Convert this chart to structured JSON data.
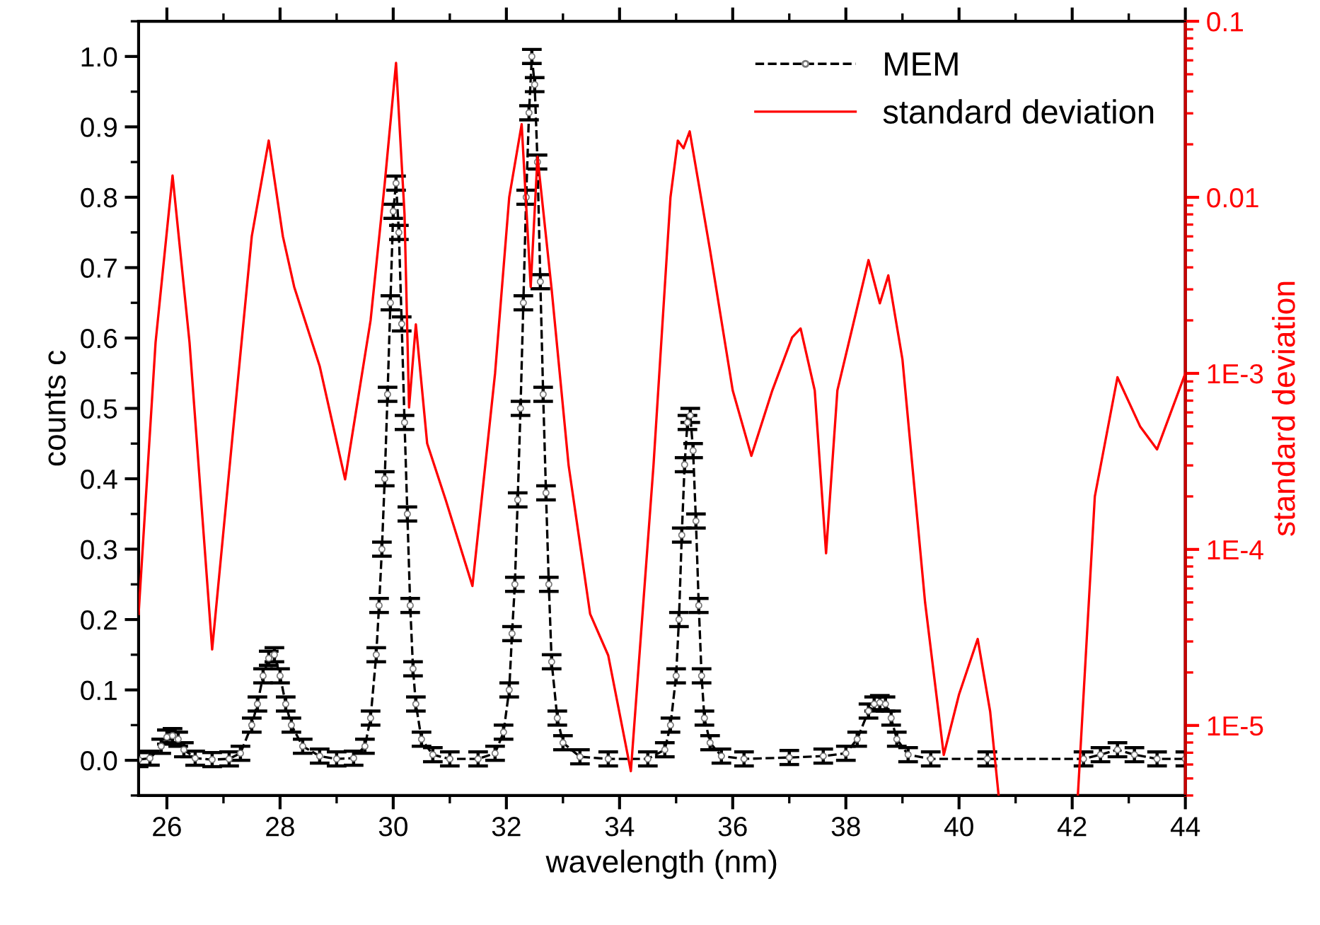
{
  "chart_data": {
    "type": "line",
    "xlabel": "wavelength (nm)",
    "ylabel": "counts c",
    "y2label": "standard deviation",
    "xlim": [
      25.5,
      44
    ],
    "xticks": [
      26,
      28,
      30,
      32,
      34,
      36,
      38,
      40,
      42,
      44
    ],
    "ylim": [
      -0.05,
      1.05
    ],
    "yticks": [
      {
        "value": 0,
        "label": "0.0"
      },
      0.1,
      0.2,
      0.3,
      0.4,
      0.5,
      0.6,
      0.7,
      0.8,
      0.9,
      {
        "value": 1,
        "label": "1.0"
      }
    ],
    "y2lim": [
      4e-06,
      0.1
    ],
    "y2ticks": [
      {
        "value": 1e-05,
        "label": "1E-5"
      },
      {
        "value": 0.0001,
        "label": "1E-4"
      },
      {
        "value": 0.001,
        "label": "1E-3"
      },
      0.01,
      0.1
    ],
    "log": "y2",
    "legend": "top right",
    "grid": false,
    "series": [
      {
        "name": "MEM",
        "color": "#000000",
        "marker": "circle",
        "line_style": "dashed",
        "x": [
          25.5,
          25.7,
          25.9,
          26.0,
          26.1,
          26.2,
          26.3,
          26.5,
          26.8,
          27.1,
          27.3,
          27.5,
          27.6,
          27.7,
          27.8,
          27.9,
          28.0,
          28.1,
          28.2,
          28.4,
          28.7,
          29.0,
          29.3,
          29.5,
          29.6,
          29.7,
          29.75,
          29.8,
          29.85,
          29.9,
          29.95,
          30.0,
          30.05,
          30.1,
          30.15,
          30.2,
          30.25,
          30.3,
          30.35,
          30.4,
          30.5,
          30.7,
          31.0,
          31.5,
          31.8,
          31.95,
          32.05,
          32.1,
          32.15,
          32.2,
          32.25,
          32.3,
          32.35,
          32.4,
          32.45,
          32.5,
          32.55,
          32.6,
          32.65,
          32.7,
          32.75,
          32.8,
          32.9,
          33.0,
          33.3,
          33.8,
          34.5,
          34.8,
          34.9,
          35.0,
          35.05,
          35.1,
          35.15,
          35.2,
          35.25,
          35.3,
          35.35,
          35.4,
          35.45,
          35.5,
          35.6,
          35.8,
          36.2,
          37.0,
          37.6,
          38.0,
          38.2,
          38.4,
          38.5,
          38.6,
          38.7,
          38.8,
          38.9,
          39.1,
          39.5,
          40.5,
          42.2,
          42.5,
          42.8,
          43.1,
          43.5,
          44.0
        ],
        "values": [
          0.001,
          0.003,
          0.02,
          0.033,
          0.035,
          0.03,
          0.015,
          0.003,
          0.001,
          0.002,
          0.01,
          0.05,
          0.08,
          0.12,
          0.145,
          0.15,
          0.12,
          0.08,
          0.05,
          0.02,
          0.006,
          0.002,
          0.003,
          0.02,
          0.06,
          0.15,
          0.22,
          0.3,
          0.4,
          0.52,
          0.65,
          0.78,
          0.82,
          0.75,
          0.62,
          0.48,
          0.35,
          0.22,
          0.13,
          0.08,
          0.03,
          0.008,
          0.002,
          0.002,
          0.01,
          0.04,
          0.1,
          0.18,
          0.25,
          0.37,
          0.5,
          0.65,
          0.8,
          0.92,
          1.0,
          0.96,
          0.85,
          0.68,
          0.52,
          0.38,
          0.25,
          0.14,
          0.06,
          0.025,
          0.005,
          0.002,
          0.002,
          0.015,
          0.05,
          0.12,
          0.2,
          0.32,
          0.42,
          0.48,
          0.49,
          0.44,
          0.34,
          0.22,
          0.12,
          0.06,
          0.025,
          0.006,
          0.002,
          0.004,
          0.006,
          0.01,
          0.03,
          0.07,
          0.08,
          0.082,
          0.08,
          0.06,
          0.03,
          0.008,
          0.002,
          0.002,
          0.002,
          0.008,
          0.015,
          0.008,
          0.002,
          0.002
        ],
        "errors": [
          0.01,
          0.01,
          0.01,
          0.01,
          0.01,
          0.01,
          0.01,
          0.01,
          0.01,
          0.01,
          0.01,
          0.01,
          0.01,
          0.01,
          0.01,
          0.01,
          0.01,
          0.01,
          0.01,
          0.01,
          0.01,
          0.01,
          0.01,
          0.01,
          0.01,
          0.01,
          0.01,
          0.01,
          0.01,
          0.01,
          0.01,
          0.01,
          0.01,
          0.01,
          0.01,
          0.01,
          0.01,
          0.01,
          0.01,
          0.01,
          0.01,
          0.01,
          0.01,
          0.01,
          0.01,
          0.01,
          0.01,
          0.01,
          0.01,
          0.01,
          0.01,
          0.01,
          0.01,
          0.01,
          0.01,
          0.01,
          0.01,
          0.01,
          0.01,
          0.01,
          0.01,
          0.01,
          0.01,
          0.01,
          0.01,
          0.01,
          0.01,
          0.01,
          0.01,
          0.01,
          0.01,
          0.01,
          0.01,
          0.01,
          0.01,
          0.01,
          0.01,
          0.01,
          0.01,
          0.01,
          0.01,
          0.01,
          0.01,
          0.01,
          0.01,
          0.01,
          0.01,
          0.01,
          0.01,
          0.01,
          0.01,
          0.01,
          0.01,
          0.01,
          0.01,
          0.01,
          0.01,
          0.01,
          0.01,
          0.01,
          0.01,
          0.01
        ]
      },
      {
        "name": "standard deviation",
        "color": "#ff0000",
        "axis": "y2",
        "marker": "none",
        "line_style": "solid",
        "x": [
          25.5,
          25.8,
          26.1,
          26.4,
          26.8,
          27.2,
          27.5,
          27.8,
          28.05,
          28.25,
          28.7,
          29.15,
          29.6,
          29.85,
          30.05,
          30.2,
          30.28,
          30.4,
          30.6,
          30.93,
          31.4,
          31.8,
          32.05,
          32.27,
          32.43,
          32.55,
          32.8,
          33.1,
          33.48,
          33.8,
          34.2,
          34.6,
          34.9,
          35.03,
          35.13,
          35.24,
          35.6,
          36.0,
          36.33,
          36.7,
          37.05,
          37.2,
          37.45,
          37.65,
          37.85,
          38.4,
          38.6,
          38.75,
          39.0,
          39.4,
          39.73,
          40.0,
          40.33,
          40.55,
          40.7,
          41.4,
          42.1,
          42.4,
          42.8,
          43.2,
          43.5,
          44.0
        ],
        "values": [
          4.3e-05,
          0.0015,
          0.0133,
          0.0015,
          2.7e-05,
          0.0006,
          0.006,
          0.021,
          0.006,
          0.0031,
          0.0011,
          0.00025,
          0.002,
          0.012,
          0.058,
          0.008,
          0.00064,
          0.0019,
          0.0004,
          0.00019,
          6.2e-05,
          0.001,
          0.01,
          0.026,
          0.0031,
          0.017,
          0.003,
          0.0003,
          4.3e-05,
          2.5e-05,
          5.5e-06,
          0.0003,
          0.01,
          0.021,
          0.019,
          0.0237,
          0.005,
          0.0008,
          0.00034,
          0.0008,
          0.0016,
          0.0018,
          0.0008,
          9.5e-05,
          0.0008,
          0.0044,
          0.0025,
          0.0036,
          0.0012,
          5e-05,
          6.8e-06,
          1.5e-05,
          3.1e-05,
          1.2e-05,
          4e-06,
          null,
          4e-06,
          0.0002,
          0.00095,
          0.0005,
          0.00037,
          0.001
        ]
      }
    ]
  }
}
